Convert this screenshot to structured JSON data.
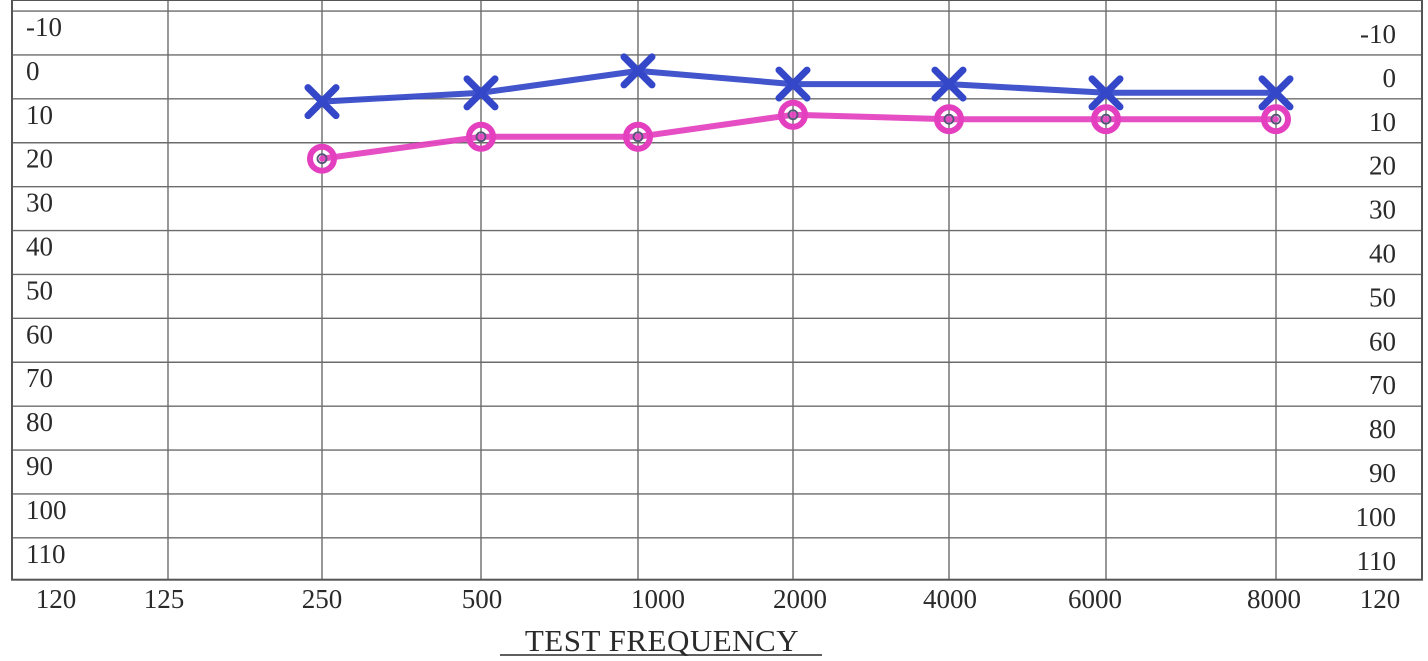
{
  "chart_data": {
    "type": "line",
    "title": "",
    "xlabel": "TEST FREQUENCY",
    "ylabel": "",
    "x_tick_labels": [
      "120",
      "125",
      "250",
      "500",
      "1000",
      "2000",
      "4000",
      "6000",
      "8000",
      "120"
    ],
    "y_tick_labels_left": [
      "-10",
      "0",
      "10",
      "20",
      "30",
      "40",
      "50",
      "60",
      "70",
      "80",
      "90",
      "100",
      "110"
    ],
    "y_tick_labels_right": [
      "-10",
      "0",
      "10",
      "20",
      "30",
      "40",
      "50",
      "60",
      "70",
      "80",
      "90",
      "100",
      "110"
    ],
    "x": [
      250,
      500,
      1000,
      2000,
      4000,
      6000,
      8000
    ],
    "ylim": [
      -10,
      120
    ],
    "y_inverted": true,
    "grid": true,
    "series": [
      {
        "name": "",
        "marker": "x",
        "color": "#3347c8",
        "values": [
          7,
          5,
          0,
          3,
          3,
          5,
          5
        ]
      },
      {
        "name": "",
        "marker": "o",
        "color": "#e43fbf",
        "values": [
          20,
          15,
          15,
          10,
          11,
          11,
          11
        ]
      }
    ]
  }
}
